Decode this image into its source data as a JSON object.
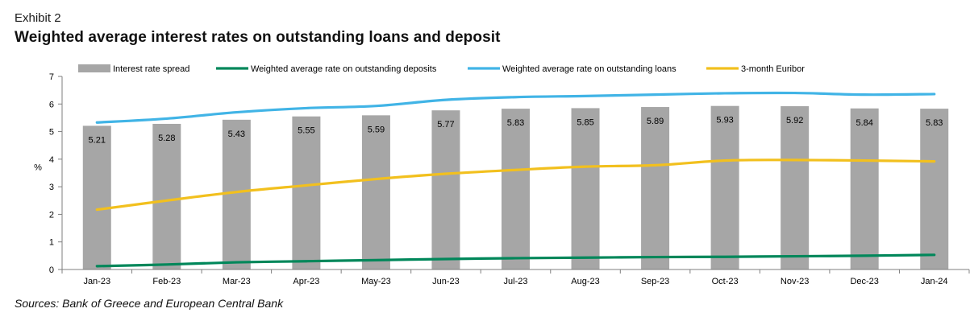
{
  "header": {
    "exhibit": "Exhibit 2",
    "title": "Weighted average interest rates on outstanding loans and deposit"
  },
  "footer": {
    "source": "Sources: Bank of Greece and European Central Bank"
  },
  "chart_data": {
    "type": "bar",
    "categories": [
      "Jan-23",
      "Feb-23",
      "Mar-23",
      "Apr-23",
      "May-23",
      "Jun-23",
      "Jul-23",
      "Aug-23",
      "Sep-23",
      "Oct-23",
      "Nov-23",
      "Dec-23",
      "Jan-24"
    ],
    "ylabel": "%",
    "ylim": [
      0,
      7
    ],
    "yticks": [
      0,
      1,
      2,
      3,
      4,
      5,
      6,
      7
    ],
    "grid": false,
    "legend_position": "top",
    "series": [
      {
        "name": "Interest rate spread",
        "type": "bar",
        "color": "#a6a6a6",
        "values": [
          5.21,
          5.28,
          5.43,
          5.55,
          5.59,
          5.77,
          5.83,
          5.85,
          5.89,
          5.93,
          5.92,
          5.84,
          5.83
        ],
        "labels": [
          "5.21",
          "5.28",
          "5.43",
          "5.55",
          "5.59",
          "5.77",
          "5.83",
          "5.85",
          "5.89",
          "5.93",
          "5.92",
          "5.84",
          "5.83"
        ]
      },
      {
        "name": "Weighted average rate on outstanding deposits",
        "type": "line",
        "color": "#00875a",
        "values": [
          0.12,
          0.18,
          0.26,
          0.3,
          0.34,
          0.38,
          0.41,
          0.43,
          0.45,
          0.46,
          0.48,
          0.5,
          0.53
        ]
      },
      {
        "name": "Weighted average rate on outstanding loans",
        "type": "line",
        "color": "#41b4e6",
        "values": [
          5.33,
          5.47,
          5.7,
          5.85,
          5.93,
          6.15,
          6.25,
          6.29,
          6.34,
          6.39,
          6.4,
          6.34,
          6.36
        ]
      },
      {
        "name": "3-month Euribor",
        "type": "line",
        "color": "#f2c01e",
        "values": [
          2.17,
          2.5,
          2.81,
          3.05,
          3.28,
          3.47,
          3.61,
          3.73,
          3.78,
          3.95,
          3.97,
          3.95,
          3.92
        ]
      }
    ]
  }
}
